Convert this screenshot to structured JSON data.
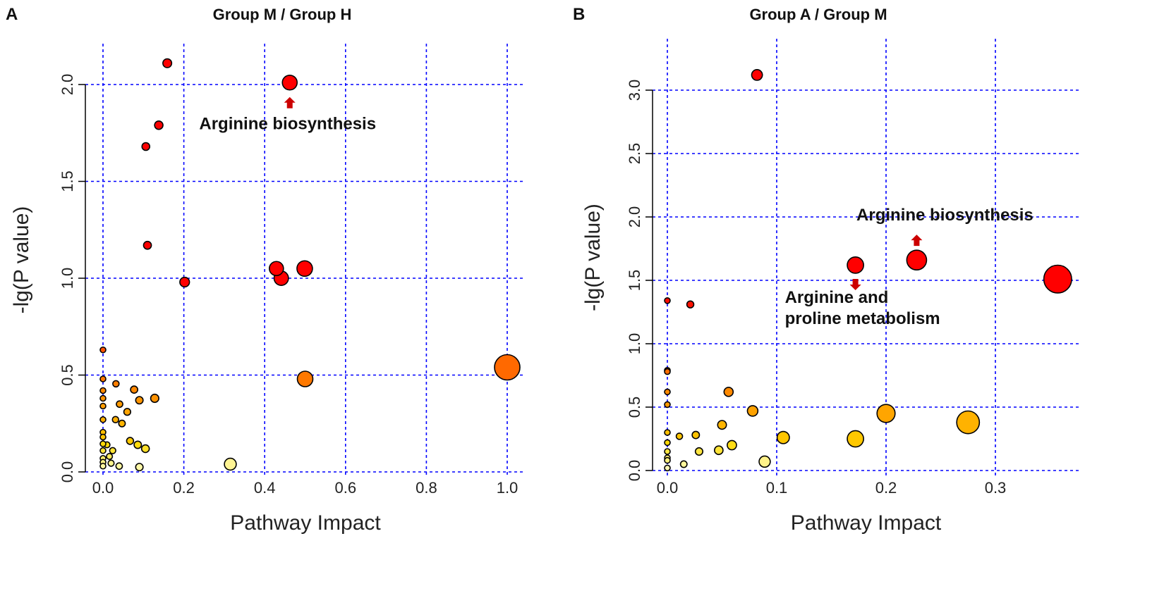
{
  "chart_data": [
    {
      "type": "scatter",
      "panel_label": "A",
      "title": "Group M / Group H",
      "xlabel": "Pathway Impact",
      "ylabel": "-lg(P value)",
      "xlim": [
        0,
        1.0
      ],
      "ylim": [
        0,
        2.0
      ],
      "xticks": [
        "0.0",
        "0.2",
        "0.4",
        "0.6",
        "0.8",
        "1.0"
      ],
      "yticks": [
        "0.0",
        "0.5",
        "1.0",
        "1.5",
        "2.0"
      ],
      "grid": true,
      "grid_color": "#0000ff",
      "color_scale": "red (high -lg P) to pale yellow (low)",
      "size_encoding": "Pathway Impact",
      "points": [
        {
          "x": 0.159,
          "y": 2.11
        },
        {
          "x": 0.462,
          "y": 2.01
        },
        {
          "x": 0.138,
          "y": 1.79
        },
        {
          "x": 0.106,
          "y": 1.68
        },
        {
          "x": 0.11,
          "y": 1.17
        },
        {
          "x": 0.202,
          "y": 0.98
        },
        {
          "x": 0.429,
          "y": 1.05
        },
        {
          "x": 0.499,
          "y": 1.05
        },
        {
          "x": 0.441,
          "y": 1.0
        },
        {
          "x": 1.0,
          "y": 0.54
        },
        {
          "x": 0.5,
          "y": 0.48
        },
        {
          "x": 0,
          "y": 0.63
        },
        {
          "x": 0,
          "y": 0.48
        },
        {
          "x": 0.032,
          "y": 0.455
        },
        {
          "x": 0,
          "y": 0.42
        },
        {
          "x": 0.077,
          "y": 0.425
        },
        {
          "x": 0,
          "y": 0.38
        },
        {
          "x": 0.09,
          "y": 0.37
        },
        {
          "x": 0.128,
          "y": 0.38
        },
        {
          "x": 0,
          "y": 0.34
        },
        {
          "x": 0.041,
          "y": 0.35
        },
        {
          "x": 0.06,
          "y": 0.31
        },
        {
          "x": 0,
          "y": 0.27
        },
        {
          "x": 0.031,
          "y": 0.27
        },
        {
          "x": 0.047,
          "y": 0.25
        },
        {
          "x": 0,
          "y": 0.205
        },
        {
          "x": 0,
          "y": 0.18
        },
        {
          "x": 0.067,
          "y": 0.16
        },
        {
          "x": 0.086,
          "y": 0.14
        },
        {
          "x": 0.105,
          "y": 0.12
        },
        {
          "x": 0.01,
          "y": 0.14
        },
        {
          "x": 0,
          "y": 0.145
        },
        {
          "x": 0.024,
          "y": 0.11
        },
        {
          "x": 0,
          "y": 0.11
        },
        {
          "x": 0.016,
          "y": 0.08
        },
        {
          "x": 0,
          "y": 0.07
        },
        {
          "x": 0,
          "y": 0.05
        },
        {
          "x": 0,
          "y": 0.03
        },
        {
          "x": 0.02,
          "y": 0.045
        },
        {
          "x": 0.04,
          "y": 0.03
        },
        {
          "x": 0.09,
          "y": 0.025
        },
        {
          "x": 0.315,
          "y": 0.04
        }
      ],
      "annotations": [
        {
          "text": "Arginine biosynthesis",
          "x": 0.462,
          "y": 2.01,
          "arrow": "up"
        }
      ]
    },
    {
      "type": "scatter",
      "panel_label": "B",
      "title": "Group A / Group M",
      "xlabel": "Pathway Impact",
      "ylabel": "-lg(P value)",
      "xlim": [
        0,
        0.36
      ],
      "ylim": [
        0,
        3.0
      ],
      "xticks": [
        "0.0",
        "0.1",
        "0.2",
        "0.3"
      ],
      "yticks": [
        "0.0",
        "0.5",
        "1.0",
        "1.5",
        "2.0",
        "2.5",
        "3.0"
      ],
      "grid": true,
      "grid_color": "#0000ff",
      "color_scale": "red (high -lg P) to pale yellow (low)",
      "size_encoding": "Pathway Impact",
      "points": [
        {
          "x": 0.082,
          "y": 3.12
        },
        {
          "x": 0.172,
          "y": 1.62
        },
        {
          "x": 0.228,
          "y": 1.66
        },
        {
          "x": 0.357,
          "y": 1.51
        },
        {
          "x": 0,
          "y": 1.34
        },
        {
          "x": 0.021,
          "y": 1.31
        },
        {
          "x": 0,
          "y": 0.79
        },
        {
          "x": 0,
          "y": 0.78
        },
        {
          "x": 0,
          "y": 0.62
        },
        {
          "x": 0,
          "y": 0.52
        },
        {
          "x": 0.056,
          "y": 0.62
        },
        {
          "x": 0.078,
          "y": 0.47
        },
        {
          "x": 0.05,
          "y": 0.36
        },
        {
          "x": 0,
          "y": 0.3
        },
        {
          "x": 0.011,
          "y": 0.27
        },
        {
          "x": 0.026,
          "y": 0.28
        },
        {
          "x": 0,
          "y": 0.22
        },
        {
          "x": 0.029,
          "y": 0.15
        },
        {
          "x": 0.047,
          "y": 0.16
        },
        {
          "x": 0.059,
          "y": 0.2
        },
        {
          "x": 0.106,
          "y": 0.26
        },
        {
          "x": 0,
          "y": 0.15
        },
        {
          "x": 0,
          "y": 0.1
        },
        {
          "x": 0,
          "y": 0.08
        },
        {
          "x": 0,
          "y": 0.02
        },
        {
          "x": 0.015,
          "y": 0.05
        },
        {
          "x": 0.089,
          "y": 0.07
        },
        {
          "x": 0.172,
          "y": 0.25
        },
        {
          "x": 0.2,
          "y": 0.45
        },
        {
          "x": 0.275,
          "y": 0.38
        }
      ],
      "annotations": [
        {
          "text": "Arginine biosynthesis",
          "x": 0.228,
          "y": 1.66,
          "arrow": "up"
        },
        {
          "text": "Arginine and",
          "text2": "proline metabolism",
          "x": 0.172,
          "y": 1.62,
          "arrow": "down"
        }
      ]
    }
  ]
}
